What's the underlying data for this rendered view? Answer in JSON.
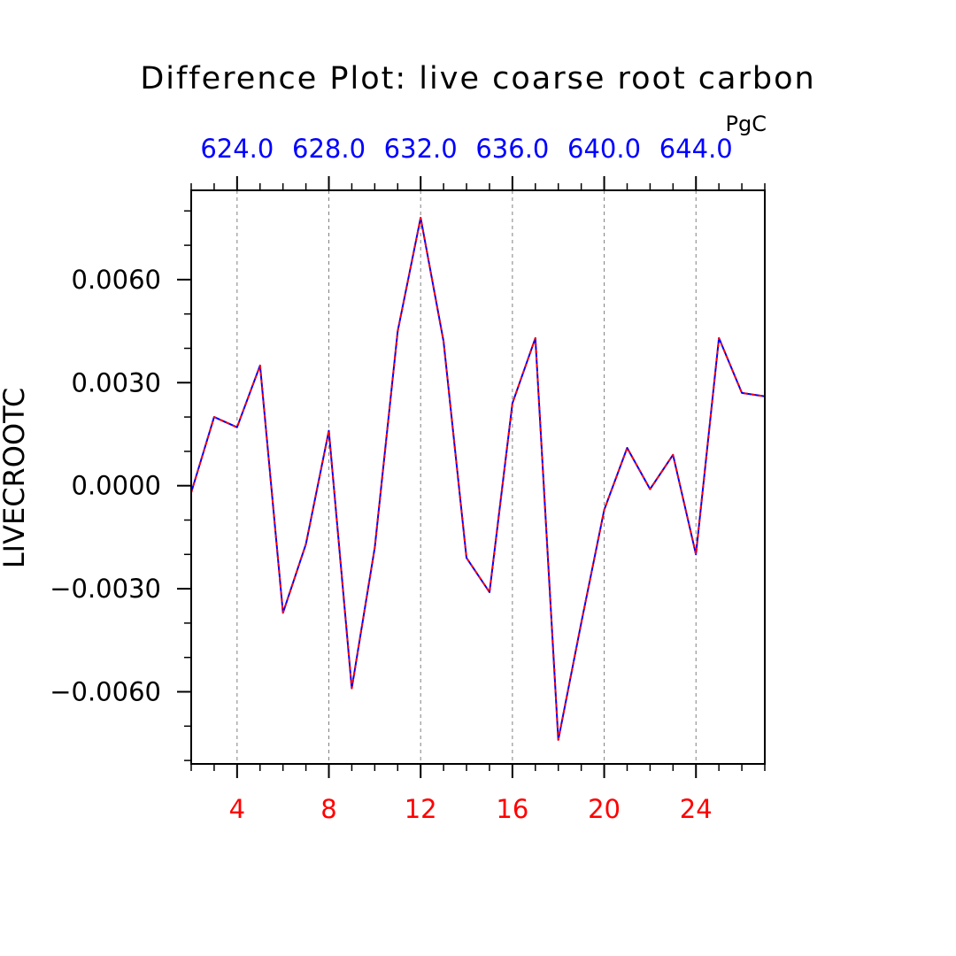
{
  "chart_data": {
    "type": "line",
    "title": "Difference Plot: live coarse root carbon",
    "units": "PgC",
    "ylabel": "LIVECROOTC",
    "xlabel": "",
    "xlim": [
      2,
      27
    ],
    "ylim": [
      -0.0081,
      0.0086
    ],
    "x_ticks": [
      4,
      8,
      12,
      16,
      20,
      24
    ],
    "x_tick_labels": [
      "4",
      "8",
      "12",
      "16",
      "20",
      "24"
    ],
    "x_minor_step": 1,
    "y_ticks": [
      0.006,
      0.003,
      0.0,
      -0.003,
      -0.006
    ],
    "y_tick_labels": [
      "0.0060",
      "0.0030",
      "0.0000",
      "−0.0030",
      "−0.0060"
    ],
    "y_minor_step": 0.001,
    "top_axis_labels": [
      "624.0",
      "628.0",
      "632.0",
      "636.0",
      "640.0",
      "644.0"
    ],
    "grid": "vertical-dashed",
    "x": [
      2,
      3,
      4,
      5,
      6,
      7,
      8,
      9,
      10,
      11,
      12,
      13,
      14,
      15,
      16,
      17,
      18,
      19,
      20,
      21,
      22,
      23,
      24,
      25,
      26,
      27
    ],
    "series": [
      {
        "values": [
          -0.0002,
          0.002,
          0.0017,
          0.0035,
          -0.0037,
          -0.0017,
          0.0016,
          -0.0059,
          -0.0018,
          0.0045,
          0.0078,
          0.0042,
          -0.0021,
          -0.0031,
          0.0024,
          0.0043,
          -0.0074,
          -0.004,
          -0.0007,
          0.0011,
          -0.0001,
          0.0009,
          -0.002,
          0.0043,
          0.0027,
          0.0026
        ],
        "color": "#0000ff"
      },
      {
        "values": [
          -0.0002,
          0.002,
          0.0017,
          0.0035,
          -0.0037,
          -0.0017,
          0.0016,
          -0.0059,
          -0.0018,
          0.0045,
          0.0078,
          0.0042,
          -0.0021,
          -0.0031,
          0.0024,
          0.0043,
          -0.0074,
          -0.004,
          -0.0007,
          0.0011,
          -0.0001,
          0.0009,
          -0.002,
          0.0043,
          0.0027,
          0.0026
        ],
        "color": "#ff0000",
        "dashed": true
      }
    ],
    "colors": {
      "bottom_axis_text": "#ff0000",
      "top_axis_text": "#0000ff",
      "grid": "#808080",
      "axis": "#000000"
    }
  }
}
